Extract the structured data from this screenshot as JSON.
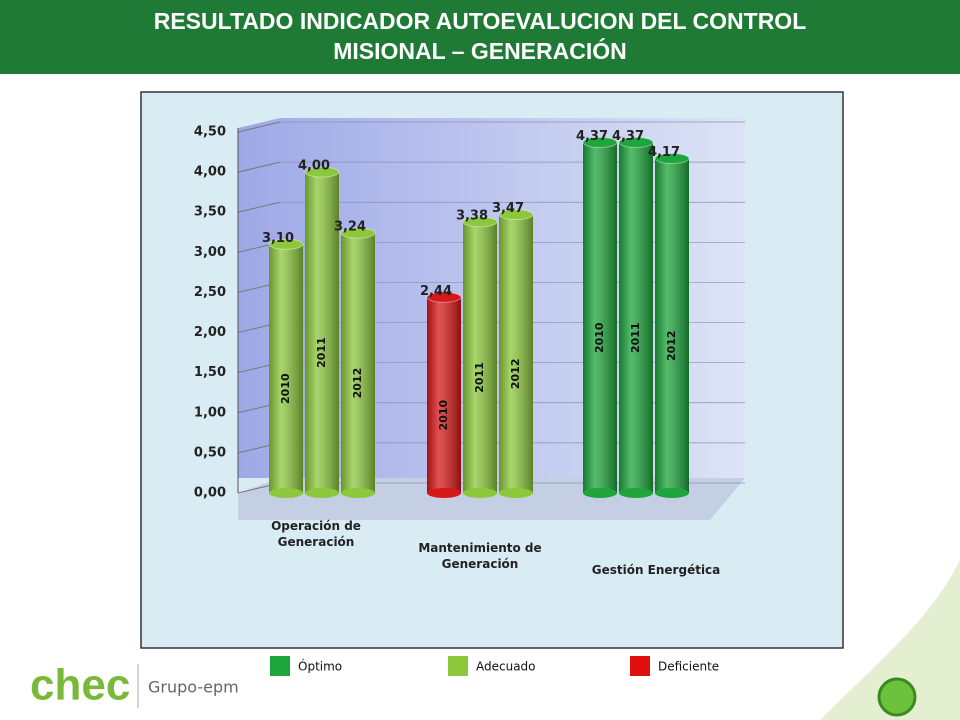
{
  "header": {
    "title": "RESULTADO INDICADOR AUTOEVALUCION DEL CONTROL MISIONAL – GENERACIÓN"
  },
  "chart_data": {
    "type": "bar",
    "categories": [
      "Operación de Generación",
      "Mantenimiento de Generación",
      "Gestión Energética"
    ],
    "series": [
      {
        "name": "2010",
        "values": [
          3.1,
          2.44,
          4.37
        ],
        "value_labels": [
          "3,10",
          "2,44",
          "4,37"
        ],
        "colors": [
          "#8cc83c",
          "#d81818",
          "#1ea53c"
        ]
      },
      {
        "name": "2011",
        "values": [
          4.0,
          3.38,
          4.37
        ],
        "value_labels": [
          "4,00",
          "3,38",
          "4,37"
        ],
        "colors": [
          "#8cc83c",
          "#8cc83c",
          "#1ea53c"
        ]
      },
      {
        "name": "2012",
        "values": [
          3.24,
          3.47,
          4.17
        ],
        "value_labels": [
          "3,24",
          "3,47",
          "4,17"
        ],
        "colors": [
          "#8cc83c",
          "#8cc83c",
          "#1ea53c"
        ]
      }
    ],
    "ylim": [
      0,
      4.5
    ],
    "yticks": [
      {
        "value": 0,
        "label": "0,00"
      },
      {
        "value": 0.5,
        "label": "0,50"
      },
      {
        "value": 1,
        "label": "1,00"
      },
      {
        "value": 1.5,
        "label": "1,50"
      },
      {
        "value": 2,
        "label": "2,00"
      },
      {
        "value": 2.5,
        "label": "2,50"
      },
      {
        "value": 3,
        "label": "3,00"
      },
      {
        "value": 3.5,
        "label": "3,50"
      },
      {
        "value": 4,
        "label": "4,00"
      },
      {
        "value": 4.5,
        "label": "4,50"
      }
    ],
    "grid": true,
    "legend": [
      {
        "name": "Óptimo",
        "color": "#1ea53c"
      },
      {
        "name": "Adecuado",
        "color": "#8cc83c"
      },
      {
        "name": "Deficiente",
        "color": "#e01010"
      }
    ]
  },
  "footer": {
    "logo": "chec",
    "group": "Grupo-epm"
  }
}
